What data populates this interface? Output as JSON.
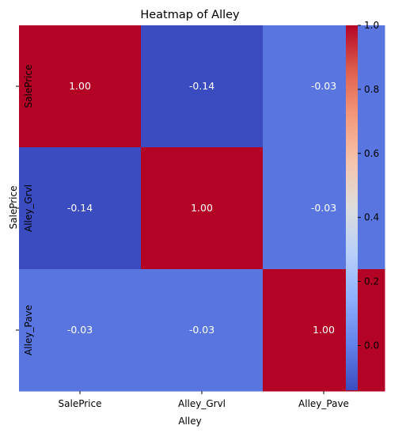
{
  "chart_data": {
    "type": "heatmap",
    "title": "Heatmap of Alley",
    "xlabel": "Alley",
    "ylabel": "SalePrice",
    "x_categories": [
      "SalePrice",
      "Alley_Grvl",
      "Alley_Pave"
    ],
    "y_categories": [
      "SalePrice",
      "Alley_Grvl",
      "Alley_Pave"
    ],
    "values": [
      [
        1.0,
        -0.14,
        -0.03
      ],
      [
        -0.14,
        1.0,
        -0.03
      ],
      [
        -0.03,
        -0.03,
        1.0
      ]
    ],
    "cell_labels": [
      [
        "1.00",
        "-0.14",
        "-0.03"
      ],
      [
        "-0.14",
        "1.00",
        "-0.03"
      ],
      [
        "-0.03",
        "-0.03",
        "1.00"
      ]
    ],
    "colormap": "coolwarm",
    "color_range": [
      -0.14,
      1.0
    ],
    "colorbar_ticks": [
      "0.0",
      "0.2",
      "0.4",
      "0.6",
      "0.8",
      "1.0"
    ],
    "colorbar_tick_values": [
      0.0,
      0.2,
      0.4,
      0.6,
      0.8,
      1.0
    ],
    "grid": false,
    "legend": "colorbar-right"
  }
}
